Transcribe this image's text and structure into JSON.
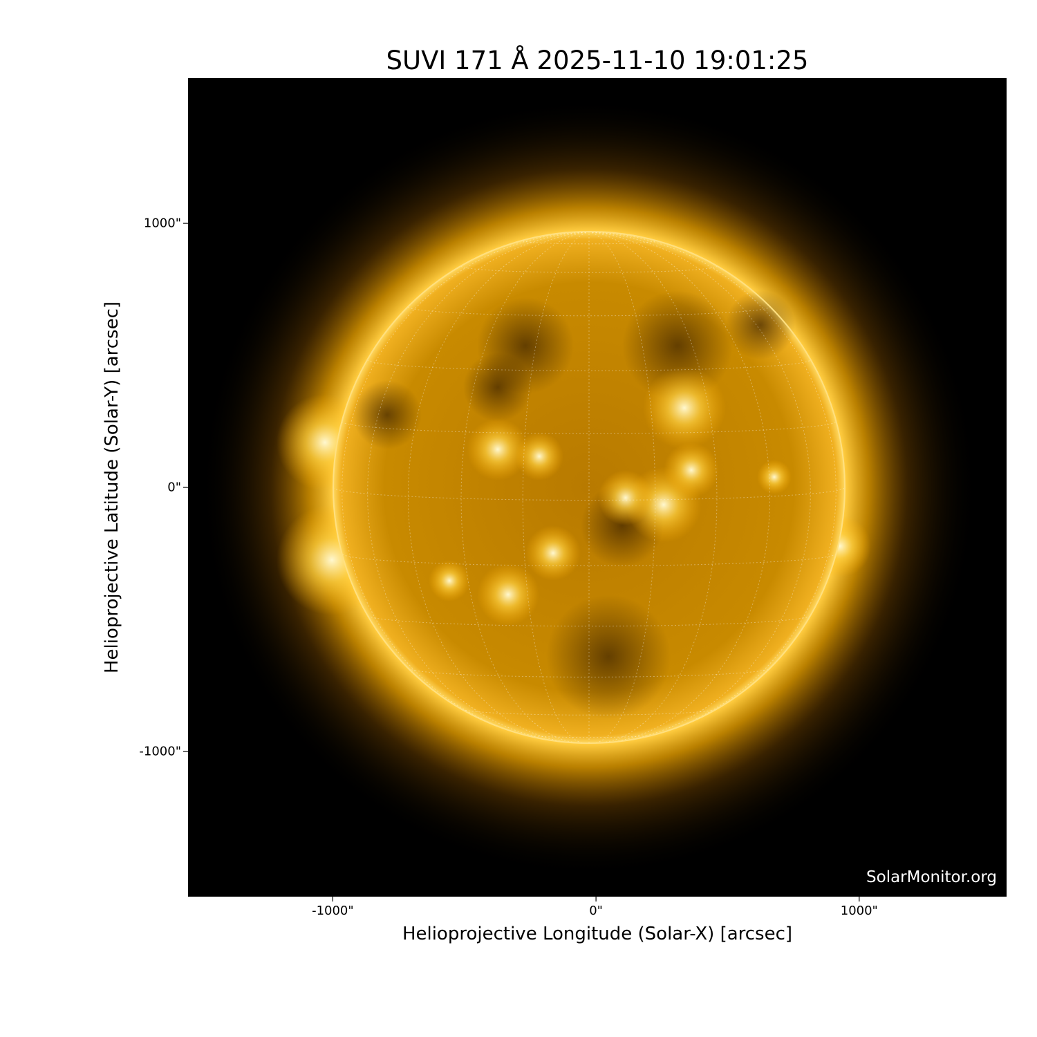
{
  "chart_data": {
    "type": "image",
    "title": "SUVI 171 Å 2025-11-10 19:01:25",
    "xlabel": "Helioprojective Longitude (Solar-X) [arcsec]",
    "ylabel": "Helioprojective Latitude (Solar-Y) [arcsec]",
    "xlim": [
      -1550,
      1560
    ],
    "ylim": [
      -1550,
      1550
    ],
    "xticks": [
      {
        "value": -1000,
        "label": "-1000\""
      },
      {
        "value": 0,
        "label": "0\""
      },
      {
        "value": 1000,
        "label": "1000\""
      }
    ],
    "yticks": [
      {
        "value": 1000,
        "label": "1000\""
      },
      {
        "value": 0,
        "label": "0\""
      },
      {
        "value": -1000,
        "label": "-1000\""
      }
    ],
    "grid": "heliographic",
    "colormap": "sdoaia171",
    "colors": {
      "background": "#000000",
      "disk": "#c88a00",
      "bright": "#fff2b0"
    },
    "watermark": "SolarMonitor.org"
  }
}
